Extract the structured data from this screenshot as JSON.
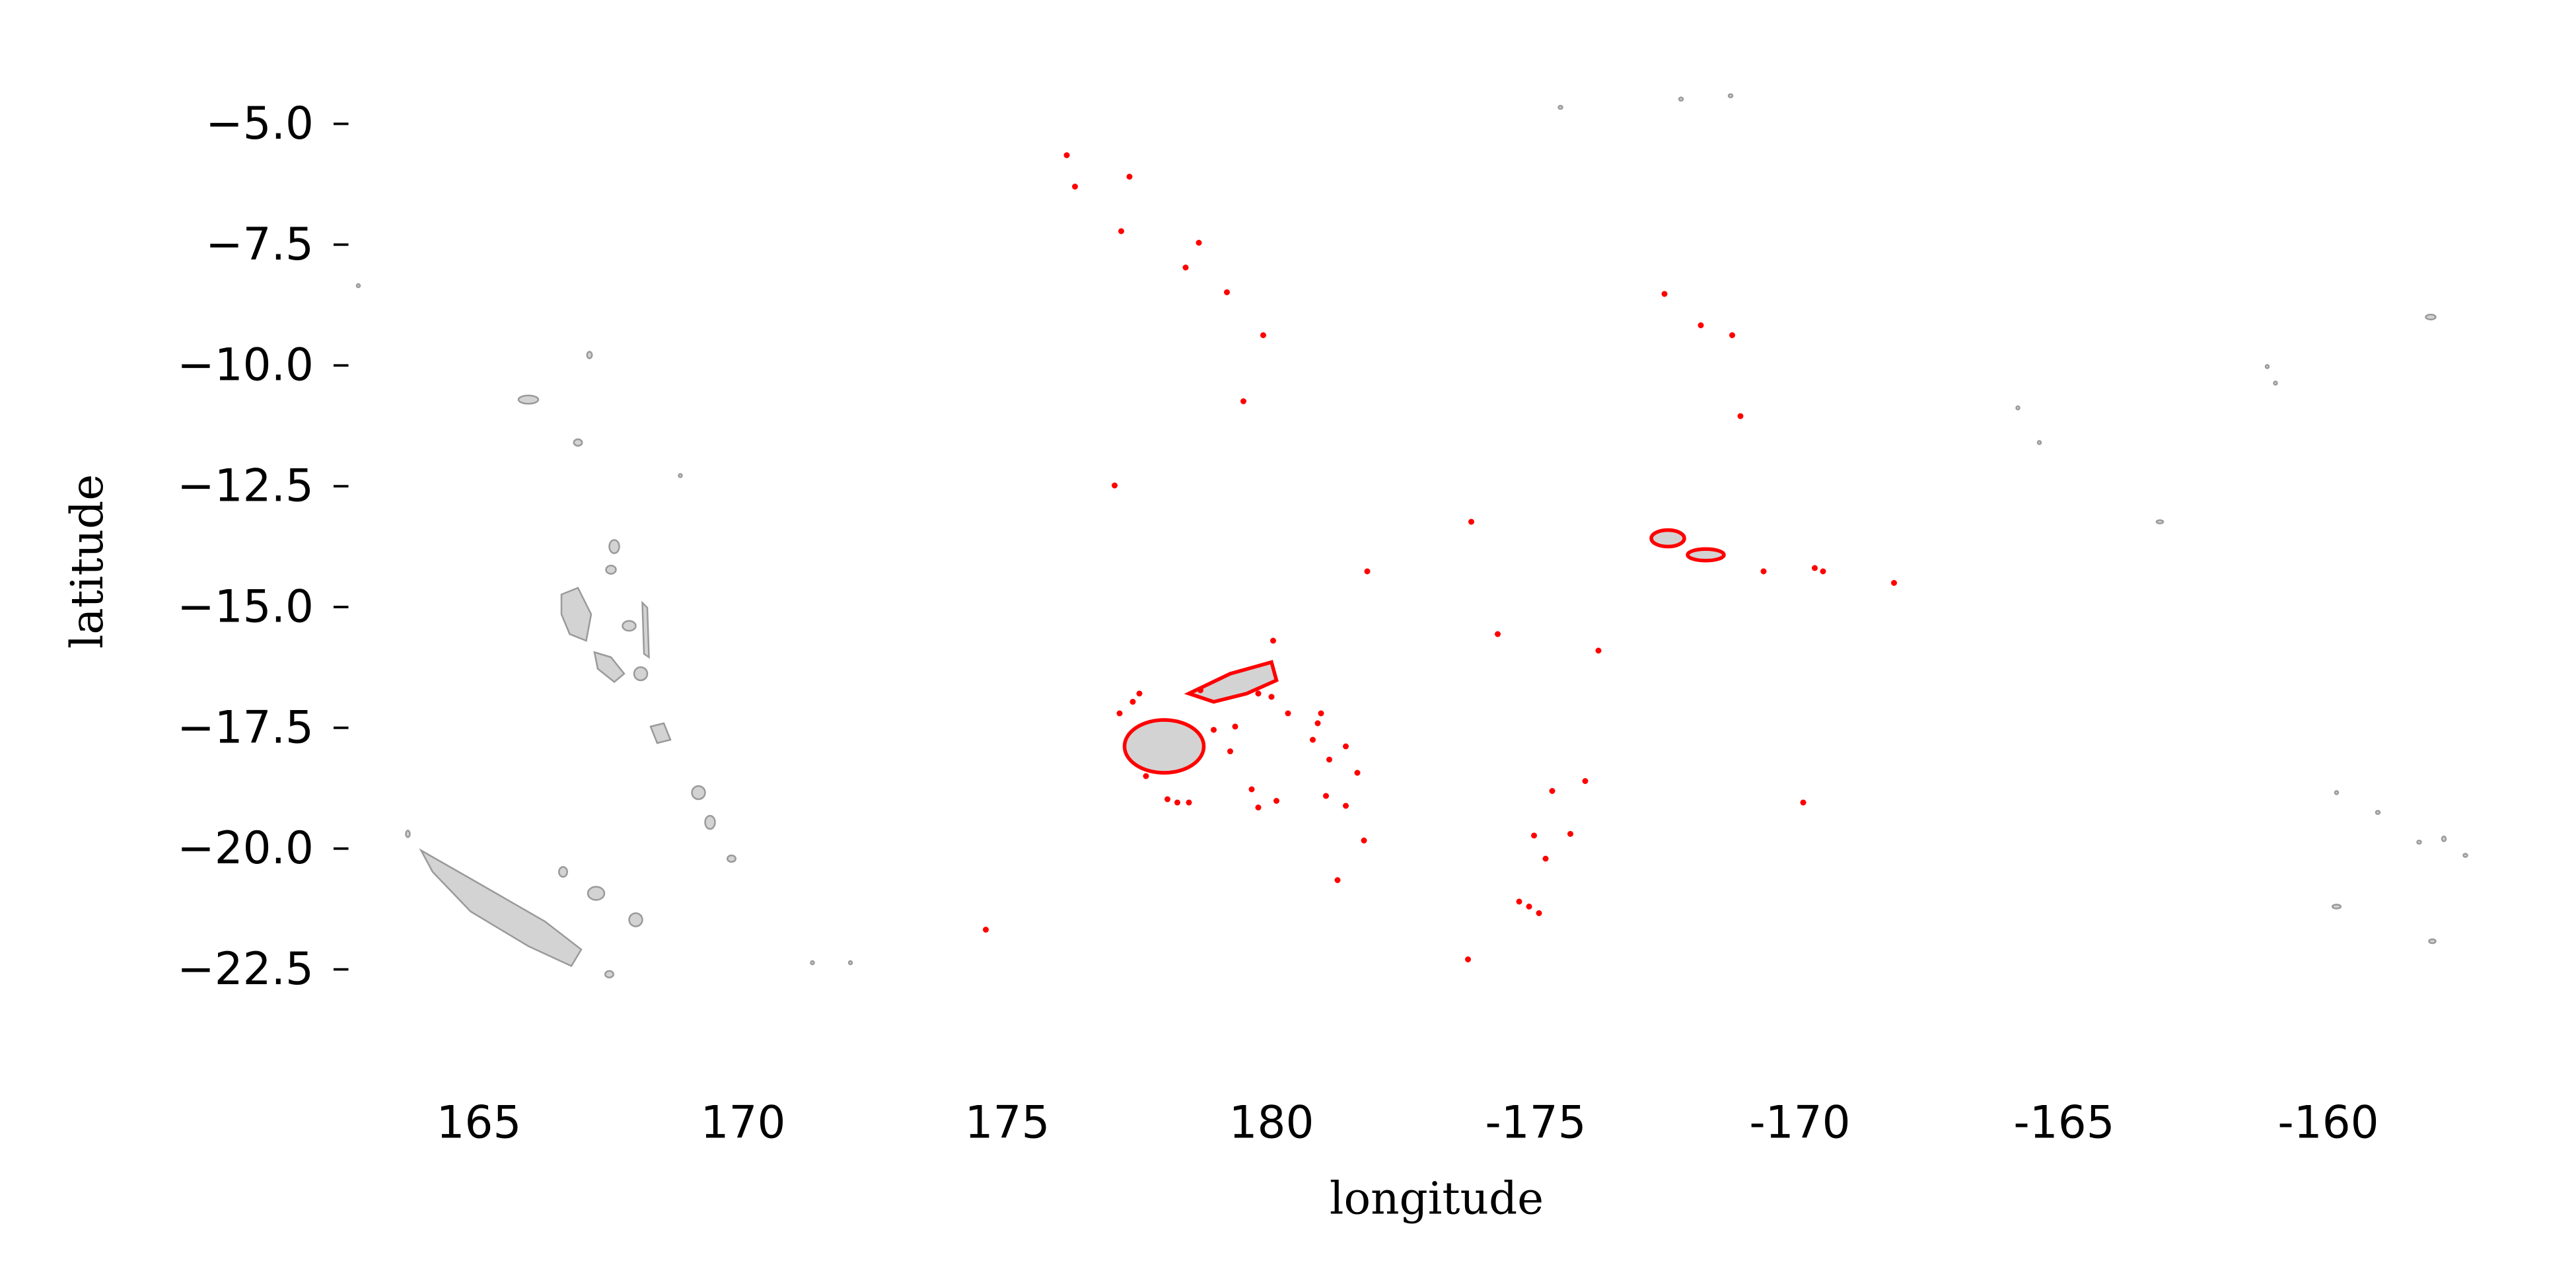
{
  "chart_data": {
    "type": "map",
    "xlabel": "longitude",
    "ylabel": "latitude",
    "xlim": [
      162.7,
      202.7
    ],
    "ylim": [
      -24.3,
      -4.3
    ],
    "xticks": [
      165,
      170,
      175,
      180,
      {
        "value": 185,
        "label": "-175"
      },
      {
        "value": 190,
        "label": "-170"
      },
      {
        "value": 195,
        "label": "-165"
      },
      {
        "value": 200,
        "label": "-160"
      }
    ],
    "yticks": [
      {
        "value": -5,
        "label": "−5.0"
      },
      {
        "value": -7.5,
        "label": "−7.5"
      },
      {
        "value": -10,
        "label": "−10.0"
      },
      {
        "value": -12.5,
        "label": "−12.5"
      },
      {
        "value": -15,
        "label": "−15.0"
      },
      {
        "value": -17.5,
        "label": "−17.5"
      },
      {
        "value": -20,
        "label": "−20.0"
      },
      {
        "value": -22.5,
        "label": "−22.5"
      }
    ],
    "highlight_color": "#ff0000"
  }
}
